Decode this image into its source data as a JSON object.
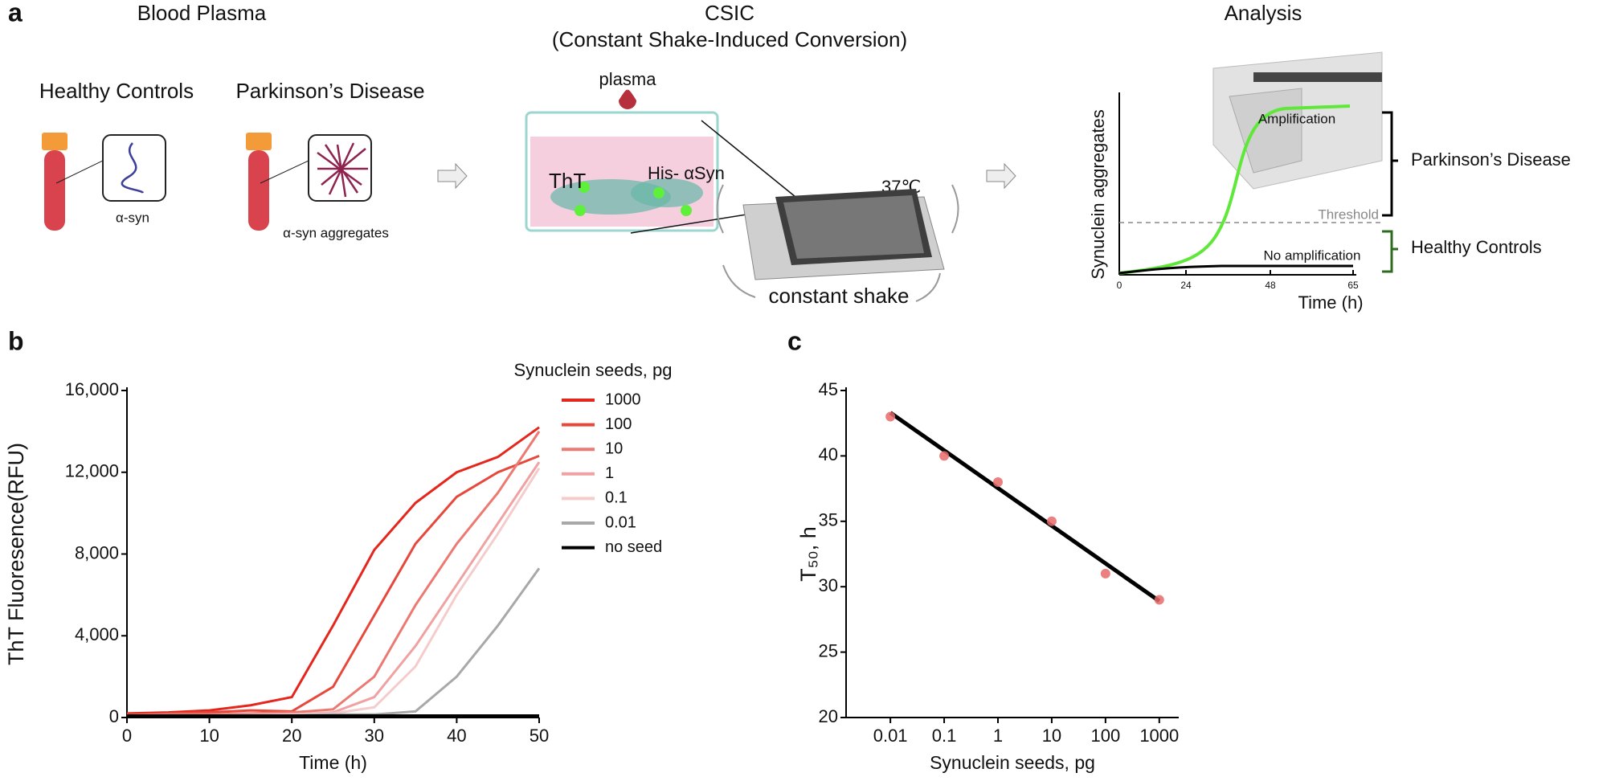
{
  "panel_a": {
    "label": "a",
    "blood_plasma": {
      "title": "Blood Plasma",
      "healthy": "Healthy Controls",
      "parkinsons": "Parkinson’s Disease",
      "monomer": "α-syn",
      "aggregates": "α-syn aggregates"
    },
    "csic": {
      "title": "CSIC",
      "subtitle": "(Constant Shake-Induced Conversion)",
      "plasma": "plasma",
      "tht": "ThT",
      "his": "His- αSyn",
      "temp": "37℃",
      "shake": "constant shake"
    },
    "analysis": {
      "title": "Analysis",
      "y_label": "Synuclein aggregates",
      "x_label": "Time (h)",
      "ticks": [
        "0",
        "24",
        "48",
        "65"
      ],
      "threshold": "Threshold",
      "amplification": "Amplification",
      "no_amplification": "No amplification",
      "parkinsons": "Parkinson’s Disease",
      "healthy": "Healthy Controls"
    }
  },
  "chart_data": [
    {
      "type": "line",
      "label": "b",
      "x_label": "Time (h)",
      "y_label": "ThT Fluoresence(RFU)",
      "legend_title": "Synuclein seeds, pg",
      "x": [
        0,
        5,
        10,
        15,
        20,
        25,
        30,
        35,
        40,
        45,
        50
      ],
      "series": [
        {
          "name": "1000",
          "color": "#e5261c",
          "values": [
            200,
            250,
            350,
            600,
            1000,
            4500,
            8200,
            10500,
            12000,
            12750,
            14200
          ]
        },
        {
          "name": "100",
          "color": "#e6483c",
          "values": [
            150,
            200,
            250,
            350,
            300,
            1500,
            5000,
            8500,
            10800,
            12000,
            12800
          ]
        },
        {
          "name": "10",
          "color": "#ec7a72",
          "values": [
            100,
            150,
            150,
            200,
            250,
            400,
            2000,
            5500,
            8500,
            11000,
            14000
          ]
        },
        {
          "name": "1",
          "color": "#f0a2a2",
          "values": [
            100,
            100,
            100,
            150,
            150,
            250,
            1000,
            3500,
            6500,
            9500,
            12500
          ]
        },
        {
          "name": "0.1",
          "color": "#f5cccc",
          "values": [
            100,
            100,
            100,
            100,
            150,
            200,
            500,
            2500,
            6000,
            9000,
            12200
          ]
        },
        {
          "name": "0.01",
          "color": "#a8a8a8",
          "values": [
            100,
            100,
            100,
            100,
            100,
            150,
            150,
            300,
            2000,
            4500,
            7300
          ]
        },
        {
          "name": "no seed",
          "color": "#000000",
          "values": [
            100,
            100,
            100,
            100,
            100,
            100,
            100,
            100,
            100,
            100,
            100
          ]
        }
      ],
      "xlim": [
        0,
        50
      ],
      "xticks": [
        0,
        10,
        20,
        30,
        40,
        50
      ],
      "ylim": [
        0,
        16000
      ],
      "yticks": [
        0,
        {
          "value": 4000,
          "label": "4,000"
        },
        {
          "value": 8000,
          "label": "8,000"
        },
        {
          "value": 12000,
          "label": "12,000"
        },
        {
          "value": 16000,
          "label": "16,000"
        }
      ]
    },
    {
      "type": "scatter",
      "label": "c",
      "x_label": "Synuclein seeds, pg",
      "y_label": "T₅₀, h",
      "log_x": true,
      "color": "#e86a6a",
      "x": [
        0.01,
        0.1,
        1,
        10,
        100,
        1000
      ],
      "values": [
        43,
        40,
        38,
        35,
        31,
        29
      ],
      "fit": {
        "x": [
          0.01,
          1000
        ],
        "y": [
          43.3,
          28.9
        ],
        "color": "#000000"
      },
      "xlim": [
        0.0015,
        2300
      ],
      "xticks": [
        0.01,
        0.1,
        1,
        10,
        100,
        1000
      ],
      "ylim": [
        20,
        45
      ],
      "yticks": [
        20,
        25,
        30,
        35,
        40,
        45
      ]
    }
  ]
}
